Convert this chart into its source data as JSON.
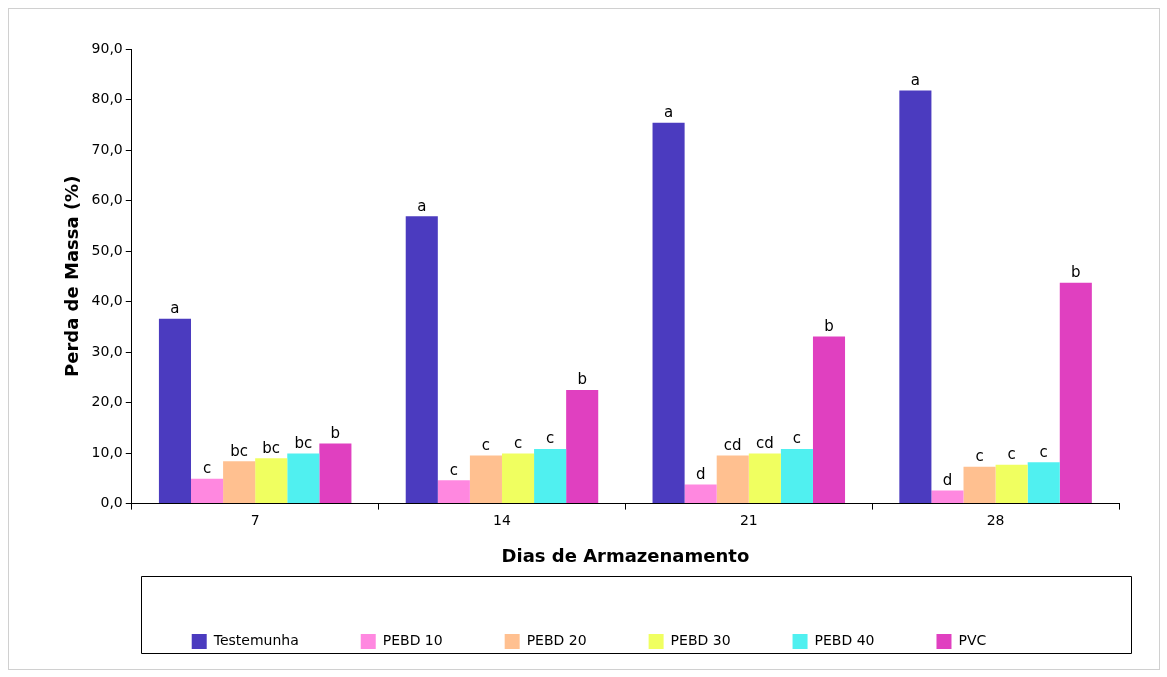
{
  "chart_data": {
    "type": "bar",
    "xlabel": "Dias de Armazenamento",
    "ylabel": "Perda de Massa (%)",
    "categories": [
      "7",
      "14",
      "21",
      "28"
    ],
    "series": [
      {
        "name": "Testemunha",
        "color": "#4b3bbf",
        "values": [
          36.6,
          56.9,
          75.4,
          81.8
        ],
        "value_labels": [
          "a",
          "a",
          "a",
          "a"
        ]
      },
      {
        "name": "PEBD 10",
        "color": "#ff88e0",
        "values": [
          4.9,
          4.6,
          3.8,
          2.6
        ],
        "value_labels": [
          "c",
          "c",
          "d",
          "d"
        ]
      },
      {
        "name": "PEBD 20",
        "color": "#ffc090",
        "values": [
          8.4,
          9.5,
          9.5,
          7.3
        ],
        "value_labels": [
          "bc",
          "c",
          "cd",
          "c"
        ]
      },
      {
        "name": "PEBD 30",
        "color": "#f0ff60",
        "values": [
          9.0,
          9.9,
          9.9,
          7.7
        ],
        "value_labels": [
          "bc",
          "c",
          "cd",
          "c"
        ]
      },
      {
        "name": "PEBD 40",
        "color": "#50f0f0",
        "values": [
          9.9,
          10.8,
          10.8,
          8.2
        ],
        "value_labels": [
          "bc",
          "c",
          "c",
          "c"
        ]
      },
      {
        "name": "PVC",
        "color": "#e040c0",
        "values": [
          11.9,
          22.5,
          33.1,
          43.7
        ],
        "value_labels": [
          "b",
          "b",
          "b",
          "b"
        ]
      }
    ],
    "ylim": [
      0,
      90
    ],
    "yticks": [
      {
        "value": 0,
        "label": "0,0"
      },
      {
        "value": 10,
        "label": "10,0"
      },
      {
        "value": 20,
        "label": "20,0"
      },
      {
        "value": 30,
        "label": "30,0"
      },
      {
        "value": 40,
        "label": "40,0"
      },
      {
        "value": 50,
        "label": "50,0"
      },
      {
        "value": 60,
        "label": "60,0"
      },
      {
        "value": 70,
        "label": "70,0"
      },
      {
        "value": 80,
        "label": "80,0"
      },
      {
        "value": 90,
        "label": "90,0"
      }
    ],
    "grid": false,
    "legend": "bottom"
  }
}
